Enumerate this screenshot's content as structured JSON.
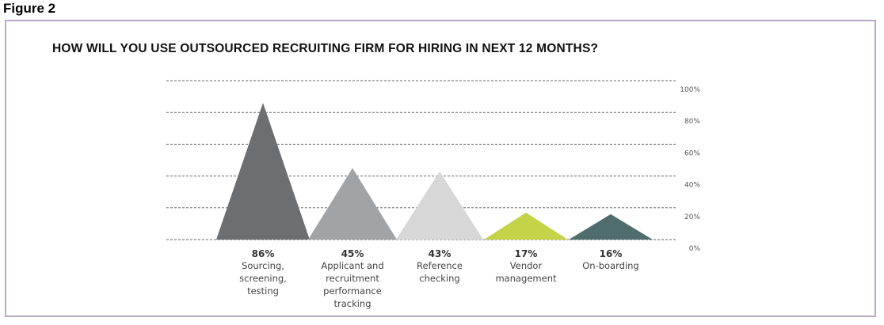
{
  "figure_label": "Figure 2",
  "chart_data": {
    "type": "area",
    "title": "HOW WILL YOU USE OUTSOURCED RECRUITING FIRM FOR HIRING IN NEXT 12 MONTHS?",
    "ylim": [
      0,
      100
    ],
    "yticks": [
      "0%",
      "20%",
      "40%",
      "60%",
      "80%",
      "100%"
    ],
    "grid": true,
    "categories": [
      "Sourcing, screening, testing",
      "Applicant and recruitment performance tracking",
      "Reference checking",
      "Vendor management",
      "On-boarding"
    ],
    "category_lines": [
      [
        "Sourcing,",
        "screening,",
        "testing"
      ],
      [
        "Applicant and",
        "recruitment",
        "performance",
        "tracking"
      ],
      [
        "Reference",
        "checking"
      ],
      [
        "Vendor",
        "management"
      ],
      [
        "On-boarding"
      ]
    ],
    "values": [
      86,
      45,
      43,
      17,
      16
    ],
    "value_labels": [
      "86%",
      "45%",
      "43%",
      "17%",
      "16%"
    ],
    "colors": [
      "#6d6e70",
      "#a2a3a5",
      "#d7d7d7",
      "#c5d348",
      "#506d6e"
    ]
  }
}
